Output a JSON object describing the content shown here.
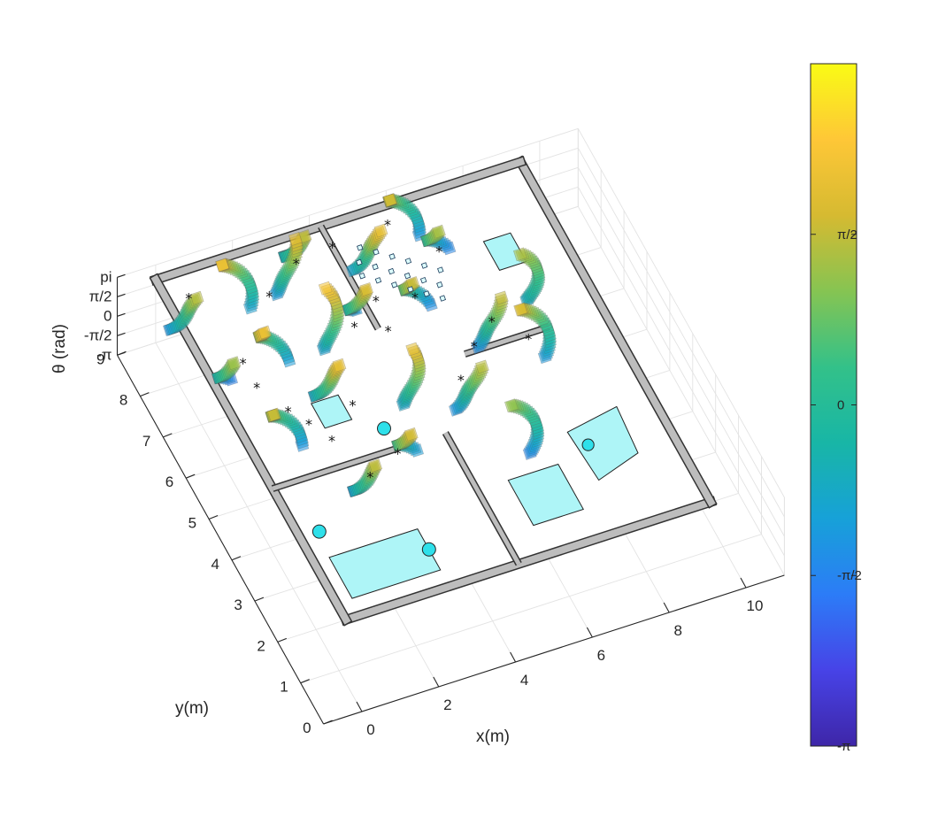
{
  "chart_data": {
    "type": "3d-scatter",
    "xlabel": "x(m)",
    "ylabel": "y(m)",
    "zlabel": "θ (rad)",
    "x_ticks": [
      "0",
      "2",
      "4",
      "6",
      "8",
      "10"
    ],
    "y_ticks": [
      "0",
      "1",
      "2",
      "3",
      "4",
      "5",
      "6",
      "7",
      "8",
      "9"
    ],
    "z_ticks": [
      "-π",
      "-π/2",
      "0",
      "π/2",
      "pi"
    ],
    "xlim": [
      -1,
      11
    ],
    "ylim": [
      0,
      9
    ],
    "zlim": [
      -3.1416,
      3.1416
    ],
    "colorbar": {
      "ticks": [
        "-π",
        "-π/2",
        "0",
        "π/2"
      ],
      "range": [
        -3.1416,
        3.1416
      ],
      "colormap": [
        "#3e26a8",
        "#4743e7",
        "#2c7cf7",
        "#17a1d8",
        "#18b6a6",
        "#33c189",
        "#86c452",
        "#d6ba31",
        "#fec737",
        "#f9fb15"
      ]
    },
    "grid": true,
    "map": {
      "outer_walls": [
        [
          0.3,
          1.2
        ],
        [
          9.8,
          1.2
        ],
        [
          9.8,
          9.5
        ],
        [
          0.3,
          9.5
        ]
      ],
      "inner_walls": [
        [
          [
            4.8,
            1.2
          ],
          [
            4.8,
            4.4
          ]
        ],
        [
          [
            0.3,
            4.4
          ],
          [
            3.5,
            4.4
          ]
        ],
        [
          [
            4.6,
            7.0
          ],
          [
            4.6,
            9.5
          ]
        ],
        [
          [
            6.2,
            5.9
          ],
          [
            8.4,
            5.9
          ]
        ]
      ],
      "furniture": [
        {
          "kind": "rect",
          "corners": [
            [
              0.7,
              1.6
            ],
            [
              3.0,
              1.6
            ],
            [
              3.0,
              2.6
            ],
            [
              0.7,
              2.6
            ]
          ]
        },
        {
          "kind": "rect",
          "corners": [
            [
              5.6,
              1.9
            ],
            [
              6.9,
              1.9
            ],
            [
              6.9,
              3.0
            ],
            [
              5.6,
              3.0
            ]
          ]
        },
        {
          "kind": "rect",
          "corners": [
            [
              7.6,
              2.4
            ],
            [
              8.8,
              2.7
            ],
            [
              8.9,
              3.8
            ],
            [
              7.5,
              3.6
            ]
          ]
        },
        {
          "kind": "rect",
          "corners": [
            [
              8.0,
              7.4
            ],
            [
              8.7,
              7.4
            ],
            [
              8.7,
              8.1
            ],
            [
              8.0,
              8.1
            ]
          ]
        },
        {
          "kind": "rect",
          "corners": [
            [
              2.2,
              5.3
            ],
            [
              2.9,
              5.3
            ],
            [
              2.9,
              5.9
            ],
            [
              2.2,
              5.9
            ]
          ]
        },
        {
          "kind": "circle",
          "center": [
            0.8,
            3.2
          ],
          "r": 0.17
        },
        {
          "kind": "circle",
          "center": [
            3.0,
            2.1
          ],
          "r": 0.17
        },
        {
          "kind": "circle",
          "center": [
            3.5,
            4.9
          ],
          "r": 0.17
        },
        {
          "kind": "circle",
          "center": [
            7.8,
            3.2
          ],
          "r": 0.15
        }
      ]
    },
    "particle_clusters": [
      {
        "x": 2.6,
        "y": 3.9,
        "theta": [
          -1.4,
          1.6
        ]
      },
      {
        "x": 3.9,
        "y": 4.2,
        "theta": [
          -1.1,
          1.8
        ]
      },
      {
        "x": 6.5,
        "y": 3.9,
        "theta": [
          -1.5,
          1.2
        ]
      },
      {
        "x": 7.9,
        "y": 5.7,
        "theta": [
          -1.2,
          1.9
        ]
      },
      {
        "x": 1.3,
        "y": 5.4,
        "theta": [
          -1.3,
          1.7
        ]
      },
      {
        "x": 2.9,
        "y": 6.1,
        "theta": [
          -1.0,
          2.1
        ]
      },
      {
        "x": 4.4,
        "y": 5.6,
        "theta": [
          -0.9,
          2.0
        ]
      },
      {
        "x": 5.8,
        "y": 5.2,
        "theta": [
          -1.3,
          1.5
        ]
      },
      {
        "x": 7.0,
        "y": 6.4,
        "theta": [
          -1.4,
          1.6
        ]
      },
      {
        "x": 8.3,
        "y": 6.9,
        "theta": [
          -0.8,
          1.4
        ]
      },
      {
        "x": 0.9,
        "y": 7.0,
        "theta": [
          -1.6,
          1.3
        ]
      },
      {
        "x": 2.0,
        "y": 7.1,
        "theta": [
          -1.1,
          2.2
        ]
      },
      {
        "x": 3.3,
        "y": 7.3,
        "theta": [
          -1.0,
          2.3
        ]
      },
      {
        "x": 4.6,
        "y": 7.5,
        "theta": [
          -1.2,
          1.9
        ]
      },
      {
        "x": 5.9,
        "y": 7.3,
        "theta": [
          -1.4,
          1.7
        ]
      },
      {
        "x": 7.1,
        "y": 8.3,
        "theta": [
          -1.5,
          1.4
        ]
      },
      {
        "x": 0.6,
        "y": 8.6,
        "theta": [
          -1.3,
          1.5
        ]
      },
      {
        "x": 1.9,
        "y": 8.6,
        "theta": [
          -1.0,
          2.2
        ]
      },
      {
        "x": 3.1,
        "y": 8.8,
        "theta": [
          -1.2,
          2.0
        ]
      },
      {
        "x": 5.3,
        "y": 8.6,
        "theta": [
          -1.0,
          2.1
        ]
      },
      {
        "x": 6.5,
        "y": 9.0,
        "theta": [
          -1.3,
          1.8
        ]
      },
      {
        "x": 3.9,
        "y": 9.1,
        "theta": [
          -1.1,
          1.6
        ]
      }
    ],
    "stars": [
      [
        2.6,
        4.0
      ],
      [
        3.5,
        4.3
      ],
      [
        2.2,
        5.0
      ],
      [
        1.9,
        5.5
      ],
      [
        1.6,
        5.9
      ],
      [
        3.1,
        5.6
      ],
      [
        5.8,
        5.4
      ],
      [
        6.5,
        6.0
      ],
      [
        7.2,
        6.4
      ],
      [
        1.2,
        7.2
      ],
      [
        4.1,
        7.2
      ],
      [
        4.9,
        7.6
      ],
      [
        5.8,
        7.4
      ],
      [
        6.9,
        8.2
      ],
      [
        2.6,
        8.4
      ],
      [
        0.8,
        8.9
      ],
      [
        3.6,
        8.9
      ],
      [
        6.1,
        9.1
      ],
      [
        4.6,
        9.0
      ],
      [
        7.8,
        5.8
      ],
      [
        1.2,
        6.6
      ],
      [
        4.8,
        6.9
      ]
    ],
    "diamonds": [
      [
        5.2,
        8.8
      ],
      [
        5.5,
        8.6
      ],
      [
        5.8,
        8.4
      ],
      [
        6.1,
        8.2
      ],
      [
        6.4,
        8.0
      ],
      [
        6.7,
        7.8
      ],
      [
        5.0,
        8.5
      ],
      [
        5.3,
        8.3
      ],
      [
        5.6,
        8.1
      ],
      [
        5.9,
        7.9
      ],
      [
        6.2,
        7.7
      ],
      [
        6.5,
        7.5
      ],
      [
        4.9,
        8.2
      ],
      [
        5.2,
        8.0
      ],
      [
        5.5,
        7.8
      ],
      [
        5.8,
        7.6
      ],
      [
        6.1,
        7.4
      ],
      [
        6.4,
        7.2
      ]
    ]
  }
}
